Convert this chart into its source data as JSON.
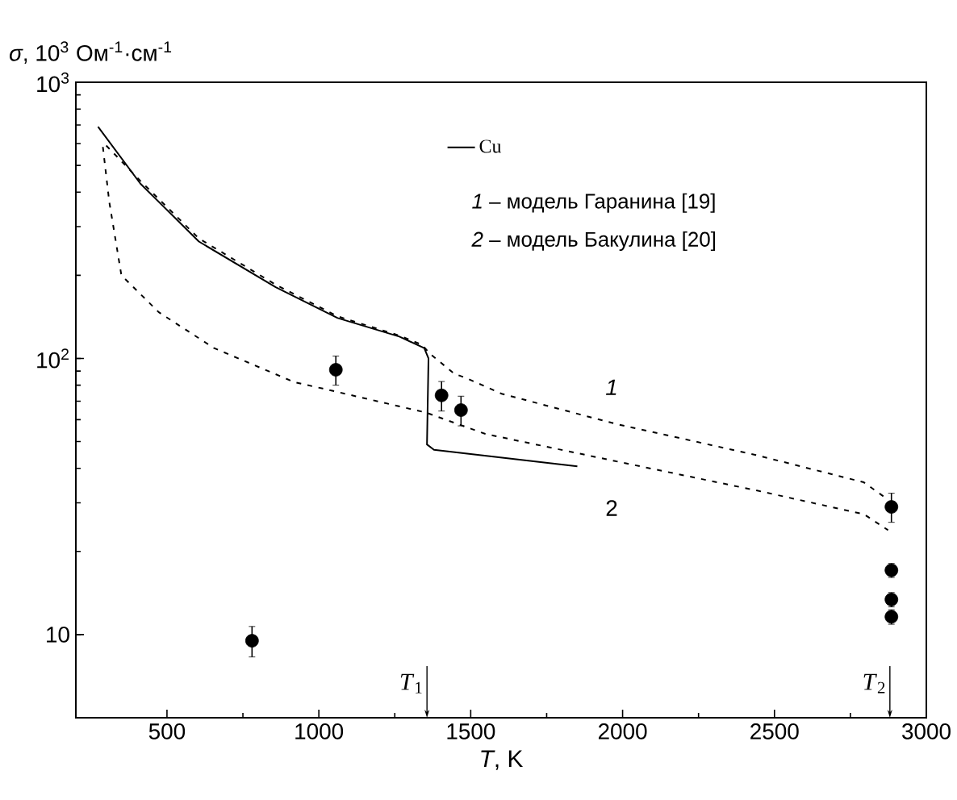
{
  "chart_data": {
    "type": "line",
    "xlabel": "*T*, K",
    "ylabel": "*σ*, 10$^{3}$ Ом$^{-1}$·см$^{-1}$",
    "xlim": [
      200,
      3000
    ],
    "xticks": [
      500,
      1000,
      1500,
      2000,
      2500,
      3000
    ],
    "ylim": [
      5,
      1000
    ],
    "yticks": [
      10,
      {
        "value": 100,
        "label": "10$^{2}$"
      },
      {
        "value": 1000,
        "label": "10$^{3}$"
      }
    ],
    "log": "y",
    "legend": "top right",
    "grid": false,
    "series": [
      {
        "color": "#000000",
        "line_style": "solid",
        "marker": "none",
        "x": [
          273,
          412,
          605,
          858,
          1062,
          1265,
          1347,
          1361,
          1356,
          1379,
          1851
        ],
        "values": [
          690,
          430,
          265,
          181,
          140,
          120,
          109,
          100,
          48.8,
          46.7,
          40.7
        ]
      },
      {
        "color": "#000000",
        "line_style": "dashed",
        "marker": "none",
        "x": [
          300,
          412,
          605,
          858,
          1062,
          1265,
          1340,
          1366,
          1446,
          1484,
          1602,
          1976,
          2439,
          2794,
          2867
        ],
        "values": [
          590,
          440,
          272,
          185,
          142,
          121,
          112,
          104,
          88,
          85,
          74.5,
          58,
          44.7,
          35.6,
          31.2
        ]
      },
      {
        "color": "#000000",
        "line_style": "dashed",
        "marker": "none",
        "x": [
          289,
          310,
          350,
          473,
          655,
          920,
          1013,
          1352,
          1548,
          2011,
          2439,
          2794,
          2874
        ],
        "values": [
          583,
          369,
          200,
          147,
          109,
          82,
          77.8,
          63.7,
          53.3,
          41.7,
          33.3,
          27.3,
          23.9
        ]
      },
      {
        "type": "scatter",
        "name": "Cu",
        "color": "#000000",
        "marker": "circle",
        "x": [
          780,
          1056,
          1404,
          1468,
          2885,
          2885,
          2885,
          2885
        ],
        "values": [
          9.5,
          91,
          73.5,
          65,
          29,
          17.1,
          13.4,
          11.6
        ],
        "errors": [
          1.2,
          11,
          9,
          8,
          3.5,
          1,
          0.8,
          0.7
        ]
      }
    ],
    "ref_lines": [
      {
        "axis": "x",
        "value": 1356,
        "label": "*T*$_{1}$"
      },
      {
        "axis": "x",
        "value": 2880,
        "label": "*T*$_{2}$"
      }
    ],
    "annotations": [
      "*1* – модель Гаранина [19]",
      "*2* – модель Бакулина [20]",
      "*1*",
      "2"
    ]
  }
}
